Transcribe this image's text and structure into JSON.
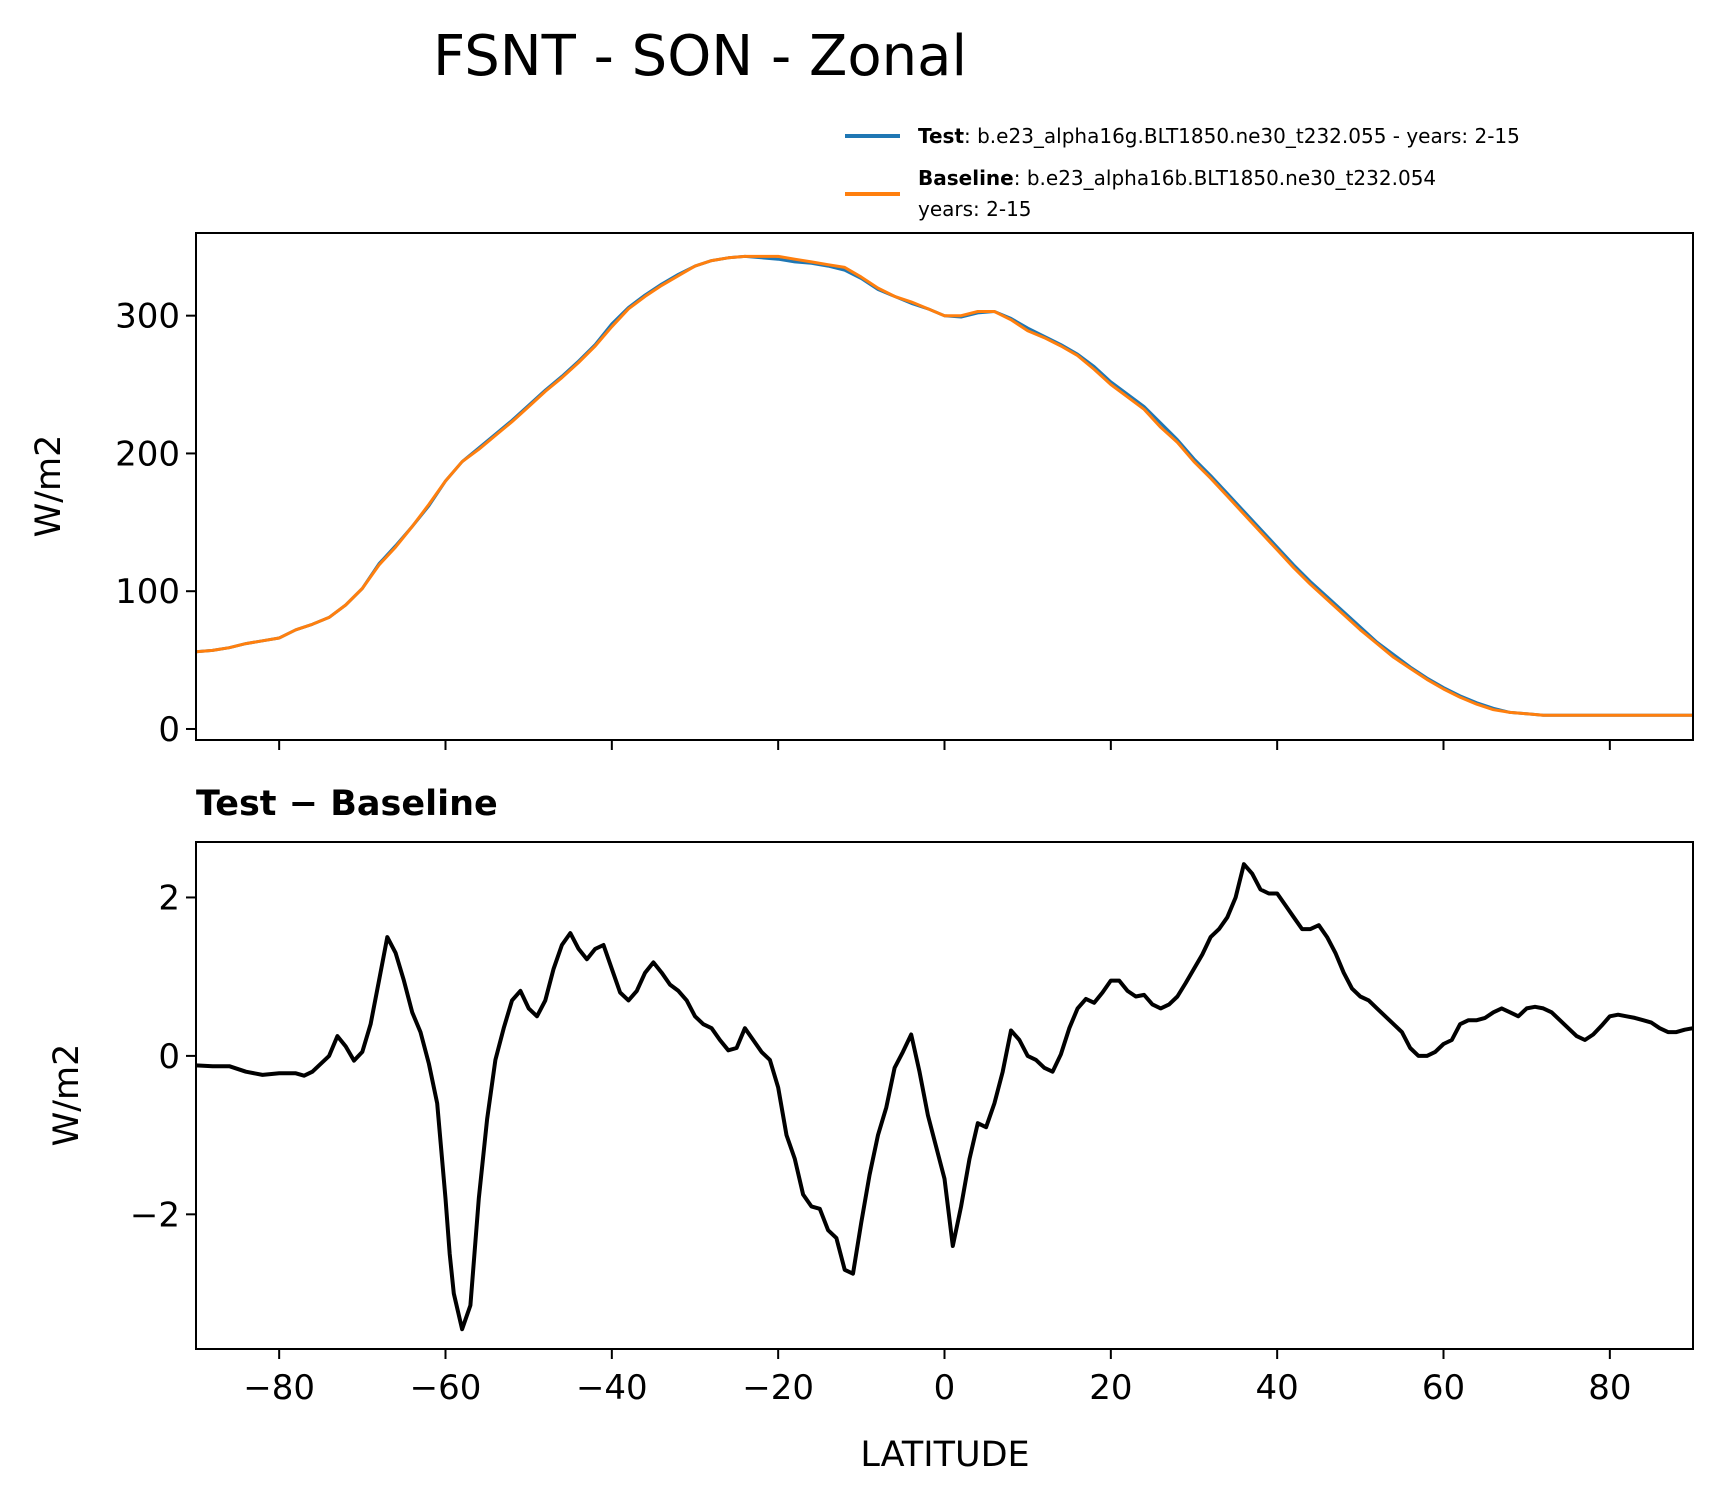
{
  "title": "FSNT - SON - Zonal",
  "legend": {
    "test_name": "Test",
    "test_text": ": b.e23_alpha16g.BLT1850.ne30_t232.055 - years: 2-15",
    "baseline_name": "Baseline",
    "baseline_text": ": b.e23_alpha16b.BLT1850.ne30_t232.054",
    "baseline_years": "years: 2-15"
  },
  "colors": {
    "test": "#1f77b4",
    "baseline": "#ff7f0e",
    "diff": "#000000"
  },
  "chart_data": [
    {
      "type": "line",
      "title": "",
      "xlabel": "",
      "ylabel": "W/m2",
      "xlim": [
        -90,
        90
      ],
      "ylim": [
        -8,
        360
      ],
      "x_ticks": [
        -80,
        -60,
        -40,
        -20,
        0,
        20,
        40,
        60,
        80
      ],
      "y_ticks": [
        0,
        100,
        200,
        300
      ],
      "y_tick_labels": [
        "0",
        "100",
        "200",
        "300"
      ],
      "legend_position": "top-right (above axes)",
      "grid": false,
      "x": [
        -90,
        -88,
        -86,
        -84,
        -82,
        -80,
        -78,
        -76,
        -74,
        -72,
        -70,
        -68,
        -66,
        -64,
        -62,
        -60,
        -58,
        -56,
        -54,
        -52,
        -50,
        -48,
        -46,
        -44,
        -42,
        -40,
        -38,
        -36,
        -34,
        -32,
        -30,
        -28,
        -26,
        -24,
        -22,
        -20,
        -18,
        -16,
        -14,
        -12,
        -10,
        -8,
        -6,
        -4,
        -2,
        0,
        2,
        4,
        6,
        8,
        10,
        12,
        14,
        16,
        18,
        20,
        22,
        24,
        26,
        28,
        30,
        32,
        34,
        36,
        38,
        40,
        42,
        44,
        46,
        48,
        50,
        52,
        54,
        56,
        58,
        60,
        62,
        64,
        66,
        68,
        70,
        72,
        74,
        76,
        78,
        80,
        82,
        84,
        86,
        88,
        90
      ],
      "series": [
        {
          "name": "Test",
          "values": [
            56,
            57,
            59,
            62,
            64,
            66,
            72,
            76,
            81,
            90,
            102,
            120,
            133,
            147,
            162,
            180,
            194,
            204,
            214,
            224,
            235,
            246,
            256,
            267,
            279,
            294,
            306,
            315,
            323,
            330,
            336,
            340,
            342,
            343,
            342,
            341,
            339,
            338,
            336,
            333,
            327,
            319,
            314,
            309,
            305,
            300,
            299,
            302,
            303,
            298,
            291,
            285,
            279,
            272,
            263,
            252,
            243,
            234,
            222,
            210,
            196,
            184,
            171,
            158,
            145,
            132,
            119,
            107,
            96,
            85,
            74,
            63,
            54,
            45,
            37,
            30,
            24,
            19,
            15,
            12,
            11,
            10,
            10,
            10,
            10,
            10,
            10,
            10,
            10,
            10,
            10
          ]
        },
        {
          "name": "Baseline",
          "values": [
            56,
            57,
            59,
            62,
            64,
            66,
            72,
            76,
            81,
            90,
            102,
            119,
            132,
            147,
            163,
            180,
            194,
            203,
            213,
            223,
            234,
            245,
            255,
            266,
            278,
            292,
            305,
            314,
            322,
            329,
            336,
            340,
            342,
            343,
            343,
            343,
            341,
            339,
            337,
            335,
            328,
            320,
            314,
            310,
            305,
            300,
            300,
            303,
            303,
            297,
            289,
            284,
            278,
            271,
            261,
            250,
            241,
            232,
            219,
            208,
            194,
            182,
            169,
            156,
            143,
            130,
            117,
            105,
            94,
            83,
            72,
            62,
            52,
            44,
            36,
            29,
            23,
            18,
            14,
            12,
            11,
            10,
            10,
            10,
            10,
            10,
            10,
            10,
            10,
            10,
            10
          ]
        }
      ]
    },
    {
      "type": "line",
      "title": "Test − Baseline",
      "xlabel": "LATITUDE",
      "ylabel": "W/m2",
      "xlim": [
        -90,
        90
      ],
      "ylim": [
        -3.7,
        2.7
      ],
      "x_ticks": [
        -80,
        -60,
        -40,
        -20,
        0,
        20,
        40,
        60,
        80
      ],
      "x_tick_labels": [
        "−80",
        "−60",
        "−40",
        "−20",
        "0",
        "20",
        "40",
        "60",
        "80"
      ],
      "y_ticks": [
        -2,
        0,
        2
      ],
      "y_tick_labels": [
        "−2",
        "0",
        "2"
      ],
      "grid": false,
      "series": [
        {
          "name": "",
          "x": [
            -90,
            -88,
            -86,
            -84,
            -82,
            -80,
            -78,
            -77,
            -76,
            -74,
            -73,
            -72,
            -71,
            -70,
            -69,
            -68,
            -67,
            -66,
            -65,
            -64,
            -63,
            -62,
            -61,
            -60,
            -59.5,
            -59,
            -58,
            -57,
            -56,
            -55,
            -54,
            -53,
            -52,
            -51,
            -50,
            -49,
            -48,
            -47,
            -46,
            -45,
            -44,
            -43,
            -42,
            -41,
            -40,
            -39,
            -38,
            -37,
            -36,
            -35,
            -34,
            -33,
            -32,
            -31,
            -30,
            -29,
            -28,
            -27,
            -26,
            -25,
            -24,
            -23,
            -22,
            -21,
            -20,
            -19,
            -18,
            -17,
            -16,
            -15,
            -14,
            -13,
            -12,
            -11,
            -10,
            -9,
            -8,
            -7,
            -6,
            -5,
            -4,
            -3,
            -2,
            -1,
            0,
            1,
            2,
            3,
            4,
            5,
            6,
            7,
            8,
            9,
            10,
            11,
            12,
            13,
            14,
            15,
            16,
            17,
            18,
            19,
            20,
            21,
            22,
            23,
            24,
            25,
            26,
            27,
            28,
            29,
            30,
            31,
            32,
            33,
            34,
            35,
            36,
            37,
            38,
            39,
            40,
            41,
            42,
            43,
            44,
            45,
            46,
            47,
            48,
            49,
            50,
            51,
            52,
            53,
            54,
            55,
            56,
            57,
            58,
            59,
            60,
            61,
            62,
            63,
            64,
            65,
            66,
            67,
            68,
            69,
            70,
            71,
            72,
            73,
            74,
            75,
            76,
            77,
            78,
            79,
            80,
            81,
            82,
            83,
            84,
            85,
            86,
            87,
            88,
            89,
            90
          ],
          "values": [
            -0.12,
            -0.13,
            -0.13,
            -0.2,
            -0.24,
            -0.22,
            -0.22,
            -0.25,
            -0.2,
            0.0,
            0.25,
            0.12,
            -0.06,
            0.05,
            0.4,
            0.95,
            1.5,
            1.3,
            0.95,
            0.55,
            0.3,
            -0.1,
            -0.6,
            -1.8,
            -2.5,
            -3.0,
            -3.45,
            -3.15,
            -1.8,
            -0.8,
            -0.05,
            0.35,
            0.7,
            0.82,
            0.6,
            0.5,
            0.7,
            1.1,
            1.4,
            1.55,
            1.35,
            1.22,
            1.35,
            1.4,
            1.1,
            0.8,
            0.7,
            0.82,
            1.05,
            1.18,
            1.05,
            0.9,
            0.82,
            0.7,
            0.5,
            0.4,
            0.35,
            0.2,
            0.07,
            0.1,
            0.35,
            0.2,
            0.05,
            -0.05,
            -0.4,
            -1.0,
            -1.3,
            -1.75,
            -1.9,
            -1.93,
            -2.2,
            -2.3,
            -2.7,
            -2.75,
            -2.1,
            -1.5,
            -1.0,
            -0.65,
            -0.15,
            0.05,
            0.27,
            -0.2,
            -0.75,
            -1.15,
            -1.55,
            -2.4,
            -1.9,
            -1.3,
            -0.85,
            -0.9,
            -0.6,
            -0.2,
            0.32,
            0.2,
            0.0,
            -0.05,
            -0.15,
            -0.2,
            0.02,
            0.35,
            0.6,
            0.72,
            0.67,
            0.8,
            0.95,
            0.95,
            0.82,
            0.75,
            0.77,
            0.65,
            0.6,
            0.65,
            0.75,
            0.92,
            1.1,
            1.28,
            1.5,
            1.6,
            1.75,
            2.0,
            2.42,
            2.3,
            2.1,
            2.05,
            2.05,
            1.9,
            1.75,
            1.6,
            1.6,
            1.65,
            1.5,
            1.3,
            1.05,
            0.85,
            0.75,
            0.7,
            0.6,
            0.5,
            0.4,
            0.3,
            0.1,
            0.0,
            0.0,
            0.05,
            0.15,
            0.2,
            0.4,
            0.45,
            0.45,
            0.48,
            0.55,
            0.6,
            0.55,
            0.5,
            0.6,
            0.62,
            0.6,
            0.55,
            0.45,
            0.35,
            0.25,
            0.2,
            0.27,
            0.38,
            0.5,
            0.52,
            0.5,
            0.48,
            0.45,
            0.42,
            0.35,
            0.3,
            0.3,
            0.33,
            0.35
          ]
        }
      ]
    }
  ]
}
